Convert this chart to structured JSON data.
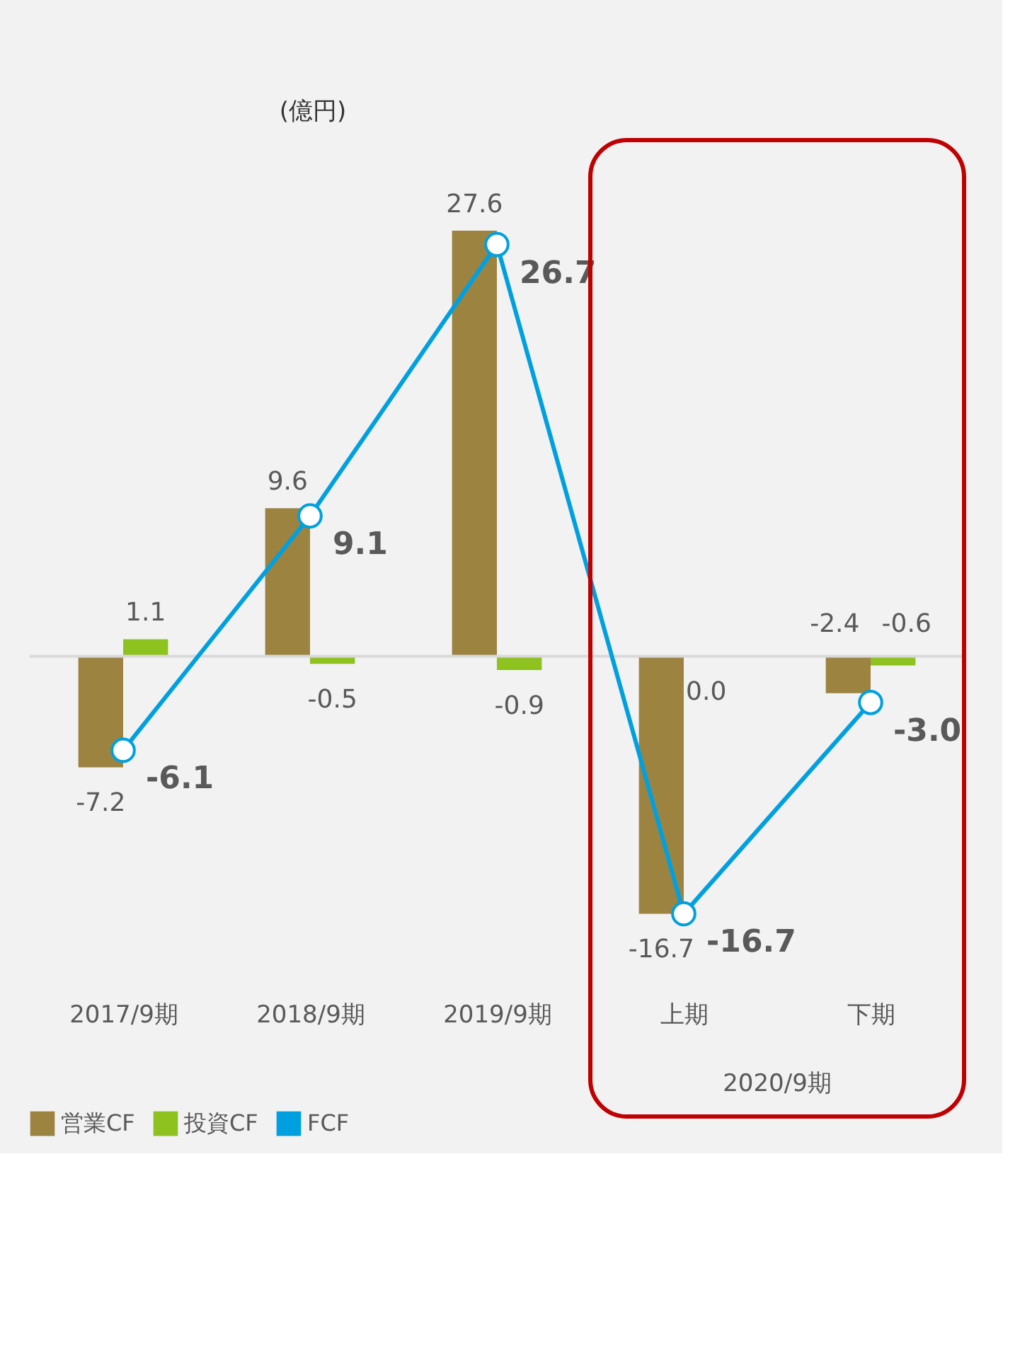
{
  "chart_data": {
    "type": "bar",
    "ylabel": "(億円)",
    "categories": [
      "2017/9期",
      "2018/9期",
      "2019/9期",
      "上期",
      "下期"
    ],
    "series": [
      {
        "name": "営業CF",
        "color": "#9c8440",
        "values": [
          -7.2,
          9.6,
          27.6,
          -16.7,
          -2.4
        ],
        "value_labels": [
          "-7.2",
          "9.6",
          "27.6",
          "-16.7",
          "-2.4"
        ]
      },
      {
        "name": "投資CF",
        "color": "#8dc21f",
        "values": [
          1.1,
          -0.5,
          -0.9,
          0.0,
          -0.6
        ],
        "value_labels": [
          "1.1",
          "-0.5",
          "-0.9",
          "0.0",
          "-0.6"
        ]
      },
      {
        "name": "FCF",
        "type": "line",
        "color": "#00a0e0",
        "values": [
          -6.1,
          9.1,
          26.7,
          -16.7,
          -3.0
        ],
        "value_labels": [
          "-6.1",
          "9.1",
          "26.7",
          "-16.7",
          "-3.0"
        ],
        "marker": "circle",
        "line_style": "solid"
      }
    ],
    "ref_lines": [
      {
        "axis": "y",
        "value": 0,
        "color": "#d9d9d9"
      }
    ],
    "annotations": [
      "2020/9期"
    ],
    "legend": "bottom",
    "grid": false
  }
}
